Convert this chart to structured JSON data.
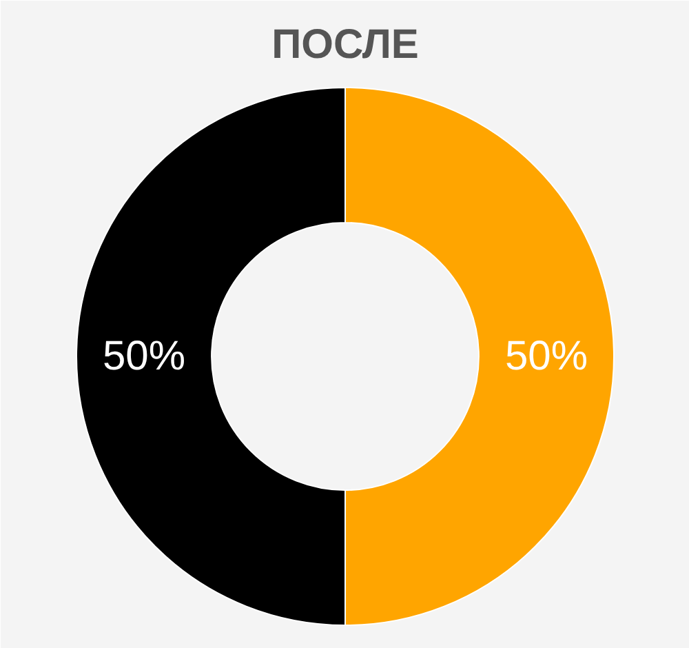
{
  "chart_data": {
    "type": "donut",
    "title": "ПОСЛЕ",
    "categories": [
      null,
      null
    ],
    "values": [
      50,
      50
    ],
    "colors": [
      "#ffa500",
      "#000000"
    ],
    "value_labels": [
      "50%",
      "50%"
    ]
  }
}
